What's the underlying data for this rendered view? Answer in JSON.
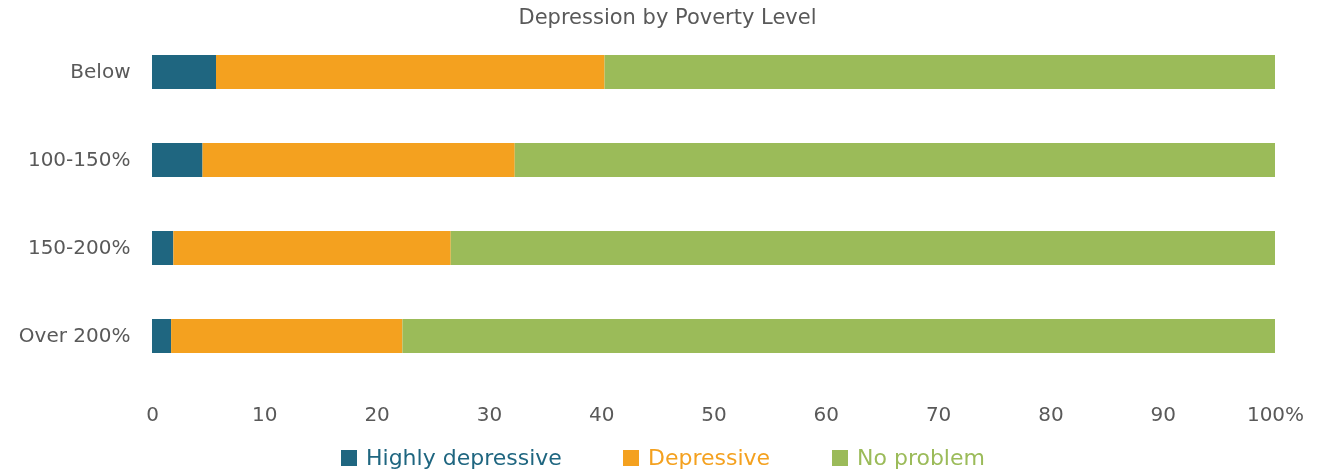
{
  "chart_data": {
    "type": "bar",
    "title": "Depression by Poverty Level",
    "orientation": "horizontal",
    "stacked": true,
    "categories": [
      "Below",
      "100-150%",
      "150-200%",
      "Over 200%"
    ],
    "series": [
      {
        "name": "Highly depressive",
        "color": "#1f6680",
        "values": [
          5.7,
          4.5,
          1.9,
          1.7
        ]
      },
      {
        "name": "Depressive",
        "color": "#f4a11f",
        "values": [
          34.6,
          27.8,
          24.7,
          20.6
        ]
      },
      {
        "name": "No problem",
        "color": "#9bbb59",
        "values": [
          59.7,
          67.7,
          73.4,
          77.7
        ]
      }
    ],
    "xlim": [
      0,
      100
    ],
    "xticks": [
      0,
      10,
      20,
      30,
      40,
      50,
      60,
      70,
      80,
      90,
      {
        "value": 100,
        "label": "100%"
      }
    ],
    "grid": false,
    "legend": "bottom"
  }
}
